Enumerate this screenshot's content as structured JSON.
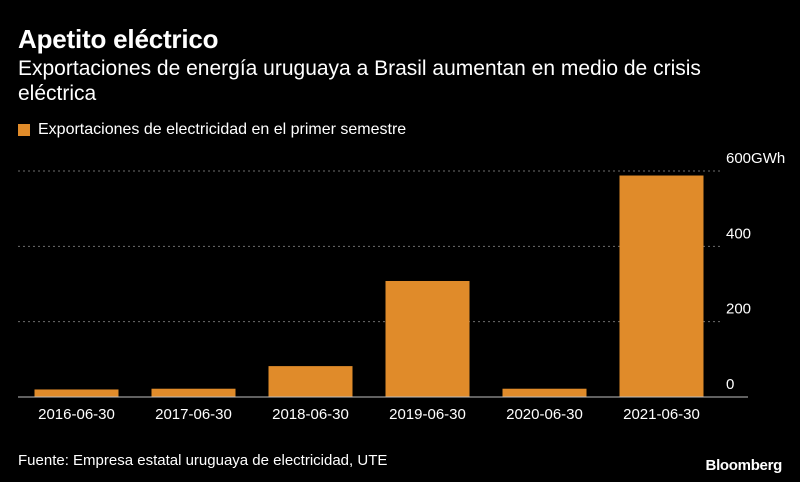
{
  "title": "Apetito eléctrico",
  "subtitle": "Exportaciones de energía uruguaya a Brasil aumentan en medio de crisis eléctrica",
  "source": "Fuente: Empresa estatal uruguaya de electricidad, UTE",
  "logo": "Bloomberg",
  "colors": {
    "bar": "#e08b2a",
    "grid": "#6e6e6e",
    "axis": "#bfbfbf"
  },
  "chart_data": {
    "type": "bar",
    "categories": [
      "2016-06-30",
      "2017-06-30",
      "2018-06-30",
      "2019-06-30",
      "2020-06-30",
      "2021-06-30"
    ],
    "series": [
      {
        "name": "Exportaciones de electricidad en el primer semestre",
        "values": [
          20,
          22,
          82,
          308,
          22,
          588
        ]
      }
    ],
    "ylim": [
      0,
      600
    ],
    "yticks": [
      0,
      200,
      400,
      600
    ],
    "ytick_labels": [
      "0",
      "200",
      "400",
      "600GWh"
    ],
    "ylabel": "",
    "xlabel": "",
    "grid": true,
    "legend_position": "top-left",
    "y_axis_side": "right"
  }
}
